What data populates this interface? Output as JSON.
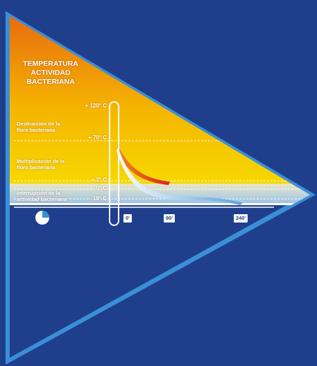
{
  "diagram": {
    "title_lines": [
      "TEMPERATURA",
      "ACTIVIDAD",
      "BACTERIANA"
    ],
    "zones": [
      {
        "label_lines": [
          "Destrucción de la",
          "flora bacteriana"
        ]
      },
      {
        "label_lines": [
          "Multiplicación de la",
          "flora bacteriana"
        ]
      },
      {
        "label_lines": [
          "Interrupción de la",
          "actividad bacteriana"
        ]
      }
    ],
    "temperatures": [
      "+ 120° C",
      "+ 70° C",
      "+ 3° C",
      "0° C",
      "-18° C"
    ],
    "time_ticks": [
      "0'",
      "90'",
      "240'"
    ],
    "icon": "clock-quarter-icon",
    "colors": {
      "background": "#1f3f8c",
      "triangle_border": "#3a8fd6",
      "gradient_top": "#e86a10",
      "gradient_bottom": "#f7d800",
      "curve_warm": "#d8251c",
      "curve_cold": "#6ab0e0"
    }
  }
}
